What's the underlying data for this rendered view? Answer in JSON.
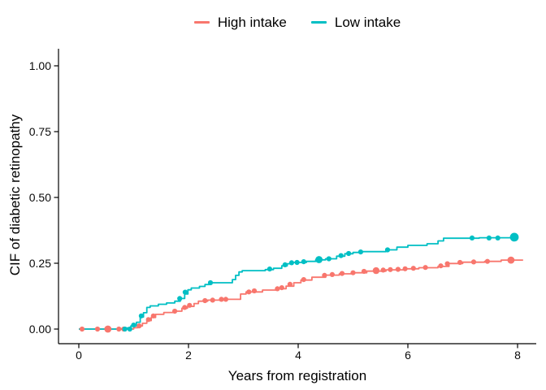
{
  "chart_data": {
    "type": "line",
    "subtype": "step-cumulative-incidence",
    "title": "",
    "xlabel": "Years from registration",
    "ylabel": "CIF of diabetic retinopathy",
    "x_ticks": [
      0,
      2,
      4,
      6,
      8
    ],
    "x_tick_labels": [
      "0",
      "2",
      "4",
      "6",
      "8"
    ],
    "y_ticks": [
      0,
      0.25,
      0.5,
      0.75,
      1.0
    ],
    "y_tick_labels": [
      "0.00",
      "0.25",
      "0.50",
      "0.75",
      "1.00"
    ],
    "xlim": [
      -0.37,
      8.34
    ],
    "ylim": [
      -0.056,
      1.074
    ],
    "grid": false,
    "legend_position": "top",
    "step_style": "hv",
    "series": [
      {
        "name": "High intake",
        "color": "#F8766D",
        "steps": [
          [
            0,
            0
          ],
          [
            1.0,
            0.005
          ],
          [
            1.08,
            0.012
          ],
          [
            1.16,
            0.022
          ],
          [
            1.24,
            0.032
          ],
          [
            1.32,
            0.044
          ],
          [
            1.4,
            0.056
          ],
          [
            1.55,
            0.063
          ],
          [
            1.72,
            0.068
          ],
          [
            1.88,
            0.079
          ],
          [
            1.98,
            0.086
          ],
          [
            2.1,
            0.097
          ],
          [
            2.18,
            0.106
          ],
          [
            2.35,
            0.11
          ],
          [
            2.6,
            0.113
          ],
          [
            2.95,
            0.133
          ],
          [
            3.05,
            0.141
          ],
          [
            3.35,
            0.148
          ],
          [
            3.62,
            0.153
          ],
          [
            3.78,
            0.163
          ],
          [
            3.92,
            0.176
          ],
          [
            4.05,
            0.186
          ],
          [
            4.25,
            0.197
          ],
          [
            4.5,
            0.205
          ],
          [
            4.75,
            0.21
          ],
          [
            5.0,
            0.214
          ],
          [
            5.25,
            0.22
          ],
          [
            5.6,
            0.225
          ],
          [
            5.95,
            0.229
          ],
          [
            6.2,
            0.233
          ],
          [
            6.55,
            0.238
          ],
          [
            6.75,
            0.249
          ],
          [
            7.0,
            0.254
          ],
          [
            7.4,
            0.257
          ],
          [
            7.7,
            0.262
          ],
          [
            8.1,
            0.262
          ]
        ],
        "markers": [
          [
            0.06,
            0
          ],
          [
            0.34,
            0
          ],
          [
            0.53,
            0,
            4.4
          ],
          [
            0.73,
            0
          ],
          [
            0.82,
            0
          ],
          [
            1.1,
            0.012
          ],
          [
            1.27,
            0.036
          ],
          [
            1.36,
            0.05
          ],
          [
            1.75,
            0.068
          ],
          [
            1.93,
            0.082
          ],
          [
            2.02,
            0.09
          ],
          [
            2.3,
            0.108
          ],
          [
            2.44,
            0.11
          ],
          [
            2.6,
            0.113
          ],
          [
            2.68,
            0.113
          ],
          [
            3.1,
            0.141
          ],
          [
            3.2,
            0.145
          ],
          [
            3.62,
            0.153
          ],
          [
            3.7,
            0.157
          ],
          [
            3.85,
            0.17
          ],
          [
            4.1,
            0.188
          ],
          [
            4.48,
            0.204
          ],
          [
            4.62,
            0.207
          ],
          [
            4.8,
            0.211
          ],
          [
            5.0,
            0.214
          ],
          [
            5.2,
            0.219
          ],
          [
            5.42,
            0.222,
            4.2
          ],
          [
            5.55,
            0.224
          ],
          [
            5.68,
            0.226
          ],
          [
            5.82,
            0.227
          ],
          [
            5.95,
            0.229
          ],
          [
            6.1,
            0.231
          ],
          [
            6.32,
            0.234
          ],
          [
            6.6,
            0.24
          ],
          [
            6.72,
            0.248
          ],
          [
            6.95,
            0.253
          ],
          [
            7.2,
            0.255
          ],
          [
            7.45,
            0.257
          ],
          [
            7.88,
            0.262,
            4.4
          ]
        ]
      },
      {
        "name": "Low intake",
        "color": "#00BFC4",
        "steps": [
          [
            0,
            0
          ],
          [
            0.88,
            0.004
          ],
          [
            0.95,
            0.012
          ],
          [
            1.05,
            0.026
          ],
          [
            1.12,
            0.046
          ],
          [
            1.18,
            0.062
          ],
          [
            1.24,
            0.082
          ],
          [
            1.3,
            0.088
          ],
          [
            1.45,
            0.094
          ],
          [
            1.6,
            0.099
          ],
          [
            1.75,
            0.106
          ],
          [
            1.85,
            0.116
          ],
          [
            1.93,
            0.133
          ],
          [
            1.99,
            0.149
          ],
          [
            2.05,
            0.156
          ],
          [
            2.2,
            0.162
          ],
          [
            2.3,
            0.169
          ],
          [
            2.38,
            0.176
          ],
          [
            2.8,
            0.188
          ],
          [
            2.86,
            0.204
          ],
          [
            2.92,
            0.217
          ],
          [
            2.98,
            0.222
          ],
          [
            3.4,
            0.226
          ],
          [
            3.55,
            0.231
          ],
          [
            3.7,
            0.24
          ],
          [
            3.8,
            0.248
          ],
          [
            3.9,
            0.253
          ],
          [
            4.15,
            0.257
          ],
          [
            4.32,
            0.263
          ],
          [
            4.5,
            0.267
          ],
          [
            4.7,
            0.277
          ],
          [
            4.85,
            0.286
          ],
          [
            5.0,
            0.291
          ],
          [
            5.15,
            0.294
          ],
          [
            5.6,
            0.301
          ],
          [
            5.8,
            0.311
          ],
          [
            6.0,
            0.318
          ],
          [
            6.35,
            0.324
          ],
          [
            6.55,
            0.335
          ],
          [
            6.65,
            0.345
          ],
          [
            7.3,
            0.347
          ],
          [
            7.96,
            0.349
          ]
        ],
        "markers": [
          [
            0.84,
            0
          ],
          [
            0.93,
            0
          ],
          [
            1.0,
            0.015
          ],
          [
            1.14,
            0.05
          ],
          [
            1.84,
            0.116
          ],
          [
            1.94,
            0.14
          ],
          [
            2.4,
            0.176
          ],
          [
            3.48,
            0.228
          ],
          [
            3.76,
            0.244
          ],
          [
            3.88,
            0.252
          ],
          [
            3.98,
            0.253
          ],
          [
            4.1,
            0.256
          ],
          [
            4.38,
            0.264,
            4.4
          ],
          [
            4.56,
            0.267
          ],
          [
            4.78,
            0.279
          ],
          [
            4.92,
            0.287
          ],
          [
            5.14,
            0.293
          ],
          [
            5.63,
            0.301
          ],
          [
            7.17,
            0.346
          ],
          [
            7.48,
            0.346
          ],
          [
            7.64,
            0.346
          ],
          [
            7.94,
            0.349,
            5.4
          ]
        ]
      }
    ]
  },
  "legend": {
    "items": [
      {
        "label": "High intake",
        "color": "#F8766D"
      },
      {
        "label": "Low intake",
        "color": "#00BFC4"
      }
    ]
  },
  "axes": {
    "x_label": "Years from registration",
    "y_label": "CIF of diabetic retinopathy",
    "axis_color": "#000000",
    "text_color": "#0a0a0a"
  }
}
